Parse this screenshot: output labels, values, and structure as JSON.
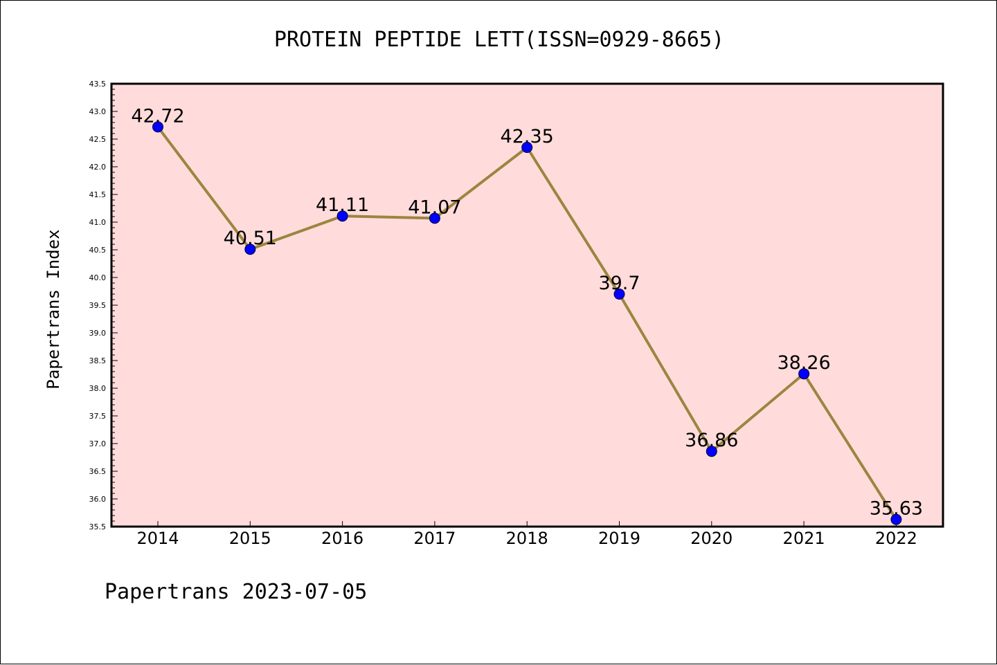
{
  "chart_data": {
    "type": "line",
    "title": "PROTEIN PEPTIDE LETT(ISSN=0929-8665)",
    "xlabel": "",
    "ylabel": "Papertrans Index",
    "categories": [
      "2014",
      "2015",
      "2016",
      "2017",
      "2018",
      "2019",
      "2020",
      "2021",
      "2022"
    ],
    "values": [
      42.72,
      40.51,
      41.11,
      41.07,
      42.35,
      39.7,
      36.86,
      38.26,
      35.63
    ],
    "data_labels": [
      "42.72",
      "40.51",
      "41.11",
      "41.07",
      "42.35",
      "39.7",
      "36.86",
      "38.26",
      "35.63"
    ],
    "ylim": [
      35.5,
      43.5
    ],
    "yticks": [
      "35.5",
      "36.0",
      "36.5",
      "37.0",
      "37.5",
      "38.0",
      "38.5",
      "39.0",
      "39.5",
      "40.0",
      "40.5",
      "41.0",
      "41.5",
      "42.0",
      "42.5",
      "43.0",
      "43.5"
    ],
    "grid": false,
    "colors": {
      "plot_background": "#ffdcdb",
      "line": "#9c8540",
      "marker": "#0000ff"
    }
  },
  "footer": "Papertrans 2023-07-05"
}
